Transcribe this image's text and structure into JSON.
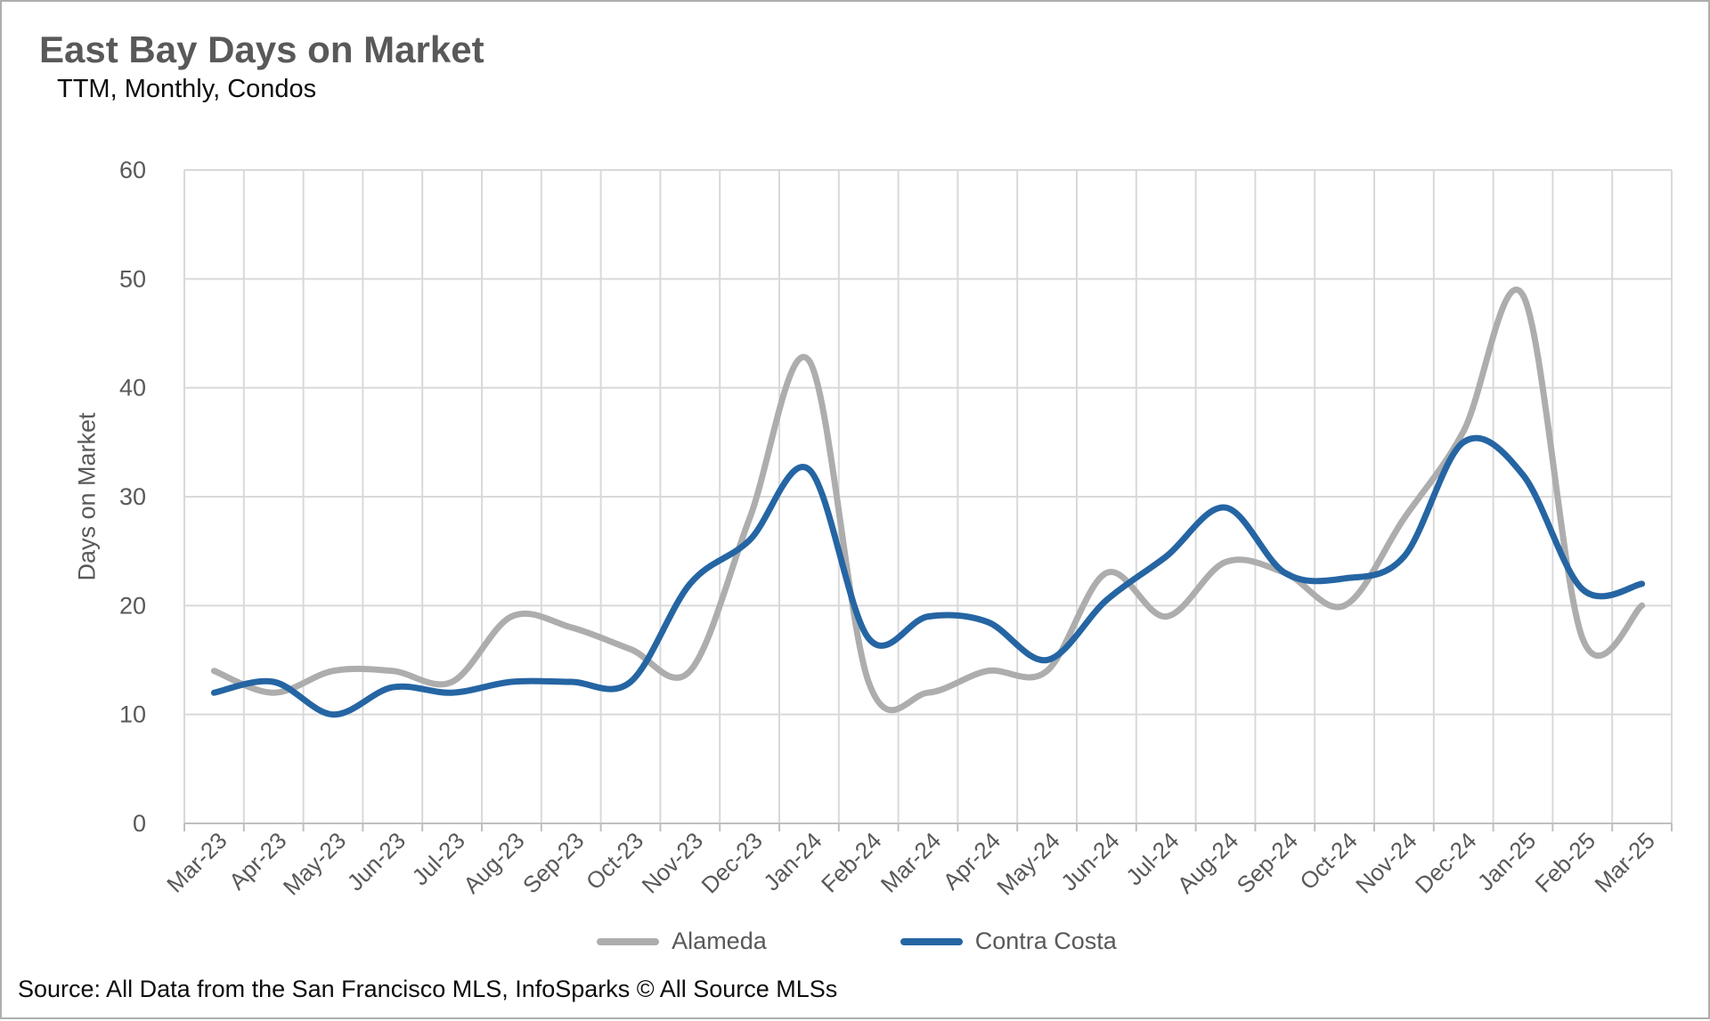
{
  "page": {
    "title": "East Bay Days on Market",
    "subtitle": "TTM, Monthly, Condos",
    "source": "Source: All Data from the San Francisco MLS, InfoSparks © All Source MLSs"
  },
  "chart_data": {
    "type": "line",
    "title": "East Bay Days on Market",
    "subtitle": "TTM, Monthly, Condos",
    "xlabel": "",
    "ylabel": "Days on Market",
    "ylim": [
      0,
      60
    ],
    "ytick_step": 10,
    "grid": true,
    "smooth": true,
    "legend_position": "bottom",
    "categories": [
      "Mar-23",
      "Apr-23",
      "May-23",
      "Jun-23",
      "Jul-23",
      "Aug-23",
      "Sep-23",
      "Oct-23",
      "Nov-23",
      "Dec-23",
      "Jan-24",
      "Feb-24",
      "Mar-24",
      "Apr-24",
      "May-24",
      "Jun-24",
      "Jul-24",
      "Aug-24",
      "Sep-24",
      "Oct-24",
      "Nov-24",
      "Dec-24",
      "Jan-25",
      "Feb-25",
      "Mar-25"
    ],
    "series": [
      {
        "name": "Alameda",
        "color": "#adadad",
        "values": [
          14,
          12,
          14,
          14,
          13,
          19,
          18,
          16,
          14,
          28,
          42.5,
          13,
          12,
          14,
          14,
          23,
          19,
          24,
          23,
          20,
          28,
          36,
          48.5,
          17,
          20
        ]
      },
      {
        "name": "Contra Costa",
        "color": "#2565a3",
        "values": [
          12,
          13,
          10,
          12.5,
          12,
          13,
          13,
          13,
          22,
          26,
          32.5,
          17,
          19,
          18.5,
          15,
          20.5,
          24.5,
          29,
          23,
          22.5,
          24.5,
          35,
          32,
          21.5,
          22
        ]
      }
    ],
    "style": {
      "gridline_color": "#d9d9d9",
      "axis_color": "#bfbfbf",
      "tick_label_color": "#595959",
      "line_width": 7
    }
  }
}
